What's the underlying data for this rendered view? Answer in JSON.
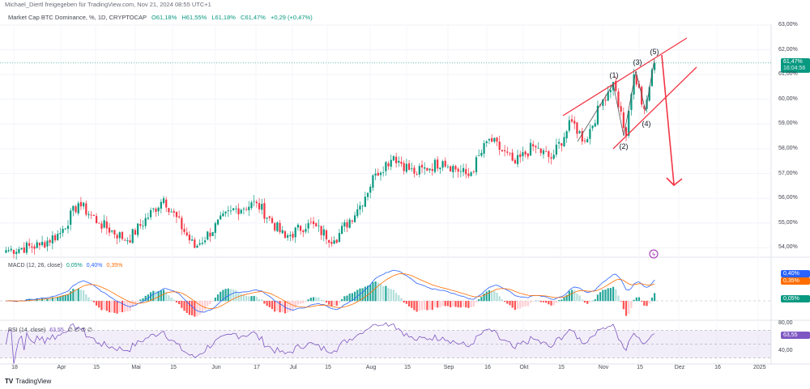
{
  "header": {
    "shared_by": "Michael_Diertl freigegeben für TradingView.com, Nov 21, 2024 08:55 UTC+1",
    "symbol": "Market Cap BTC Dominance, %, 1D, CRYPTOCAP",
    "open": "O61,18%",
    "high": "H61,55%",
    "low": "L61,18%",
    "close": "C61,47%",
    "change": "+0,29 (+0,47%)"
  },
  "price_tag": {
    "value": "61,47%",
    "countdown": "16:04:56"
  },
  "macd": {
    "title": "MACD (12, 26, close)",
    "hist": "0,05%",
    "macd": "0,40%",
    "signal": "0,35%"
  },
  "rsi": {
    "title": "RSI (14, close)",
    "value": "63,55",
    "extra": "∅ ∅ ∅ ∅",
    "upper_label": "80,00",
    "lower_label": "40,00"
  },
  "footer": {
    "brand": "TradingView"
  },
  "colors": {
    "up": "#089981",
    "down": "#f23645",
    "macd": "#2962ff",
    "signal": "#ff6d00",
    "rsi": "#7e57c2",
    "annotation": "#f23645"
  },
  "annotations": {
    "wave_labels": [
      "(1)",
      "(2)",
      "(3)",
      "(4)",
      "(5)"
    ]
  },
  "chart_data": {
    "type": "candlestick",
    "title": "Market Cap BTC Dominance, %, 1D, CRYPTOCAP",
    "y_ticks": [
      "63,00%",
      "62,00%",
      "61,00%",
      "60,00%",
      "59,00%",
      "58,00%",
      "57,00%",
      "56,00%",
      "55,00%",
      "54,00%"
    ],
    "ylim": [
      53.7,
      63.3
    ],
    "x_ticks": [
      "18",
      "Apr",
      "15",
      "Mai",
      "15",
      "Jun",
      "17",
      "Jul",
      "15",
      "Aug",
      "15",
      "Sep",
      "16",
      "Okt",
      "15",
      "Nov",
      "15",
      "Dez",
      "16",
      "2025"
    ],
    "close_keypoints": [
      [
        "2024-03-15",
        53.9
      ],
      [
        "2024-03-28",
        54.1
      ],
      [
        "2024-04-05",
        54.6
      ],
      [
        "2024-04-12",
        55.8
      ],
      [
        "2024-04-20",
        55.0
      ],
      [
        "2024-05-01",
        54.3
      ],
      [
        "2024-05-15",
        56.0
      ],
      [
        "2024-05-27",
        54.0
      ],
      [
        "2024-06-10",
        55.5
      ],
      [
        "2024-06-20",
        55.8
      ],
      [
        "2024-07-01",
        54.4
      ],
      [
        "2024-07-10",
        55.0
      ],
      [
        "2024-07-20",
        54.3
      ],
      [
        "2024-07-30",
        55.7
      ],
      [
        "2024-08-05",
        57.0
      ],
      [
        "2024-08-12",
        57.7
      ],
      [
        "2024-08-20",
        57.0
      ],
      [
        "2024-08-31",
        57.5
      ],
      [
        "2024-09-10",
        56.9
      ],
      [
        "2024-09-18",
        58.4
      ],
      [
        "2024-09-28",
        57.4
      ],
      [
        "2024-10-05",
        58.1
      ],
      [
        "2024-10-12",
        57.6
      ],
      [
        "2024-10-20",
        59.1
      ],
      [
        "2024-10-25",
        58.3
      ],
      [
        "2024-11-01",
        60.0
      ],
      [
        "2024-11-05",
        60.7
      ],
      [
        "2024-11-10",
        58.5
      ],
      [
        "2024-11-13",
        61.0
      ],
      [
        "2024-11-17",
        59.6
      ],
      [
        "2024-11-21",
        61.47
      ]
    ],
    "last": 61.47,
    "grid": true
  }
}
